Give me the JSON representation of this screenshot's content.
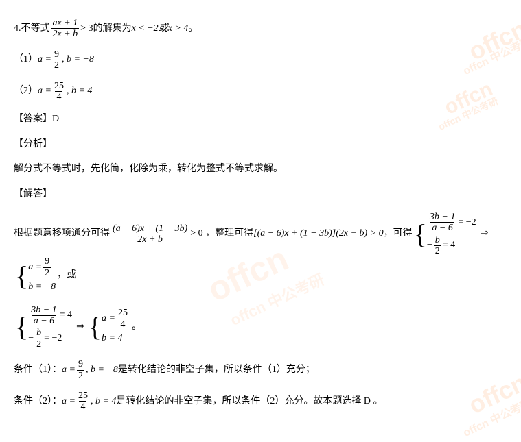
{
  "colors": {
    "text": "#000000",
    "bg": "#ffffff",
    "watermark": "rgba(255,140,60,0.15)"
  },
  "q": {
    "number": "4. ",
    "prefix": "不等式",
    "frac_top": "ax + 1",
    "frac_bot": "2x + b",
    "gt3": " > 3",
    "suffix": " 的解集为 ",
    "cond": "x < −2或x > 4",
    "period": " 。"
  },
  "opts": {
    "o1_label": "（1）",
    "o1_a": "a =",
    "o1_a_top": "9",
    "o1_a_bot": "2",
    "o1_b": ", b = −8",
    "o2_label": "（2）",
    "o2_a": "a =",
    "o2_a_top": "25",
    "o2_a_bot": "4",
    "o2_b": ", b = 4"
  },
  "answer_label": "【答案】",
  "answer_value": "D",
  "analysis_label": "【分析】",
  "analysis_text": "解分式不等式时，先化简，化除为乘，转化为整式不等式求解。",
  "solve_label": "【解答】",
  "solve": {
    "p1": "根据题意移项通分可得",
    "f1_top": "(a − 6)x + (1 − 3b)",
    "f1_bot": "2x + b",
    "gt0_1": " > 0 ，整理可得 ",
    "prod": "[(a − 6)x + (1 − 3b)](2x + b) > 0",
    "p2": " ，可得",
    "c1a_top": "3b − 1",
    "c1a_bot": "a − 6",
    "c1a_rhs": "= −2",
    "c1b_top_pre": "−",
    "c1b_top": "b",
    "c1b_bot": "2",
    "c1b_rhs": "= 4",
    "arrow": "⇒",
    "r1a": "a =",
    "r1a_top": "9",
    "r1a_bot": "2",
    "r1b": "b = −8",
    "or": " ，或",
    "c2a_top": "3b − 1",
    "c2a_bot": "a − 6",
    "c2a_rhs": "= 4",
    "c2b_top_pre": "−",
    "c2b_top": "b",
    "c2b_bot": "2",
    "c2b_rhs": "= −2",
    "r2a": "a =",
    "r2a_top": "25",
    "r2a_bot": "4",
    "r2b": "b = 4",
    "period": " 。"
  },
  "concl": {
    "c1_label": "条件（1）：",
    "c1_a": " a =",
    "c1_a_top": "9",
    "c1_a_bot": "2",
    "c1_b": ", b = −8",
    "c1_text": " 是转化结论的非空子集，所以条件（1）充分；",
    "c2_label": "条件（2）：",
    "c2_a": " a =",
    "c2_a_top": "25",
    "c2_a_bot": "4",
    "c2_b": ", b = 4",
    "c2_text": " 是转化结论的非空子集，所以条件（2）充分。故本题选择 D 。"
  }
}
